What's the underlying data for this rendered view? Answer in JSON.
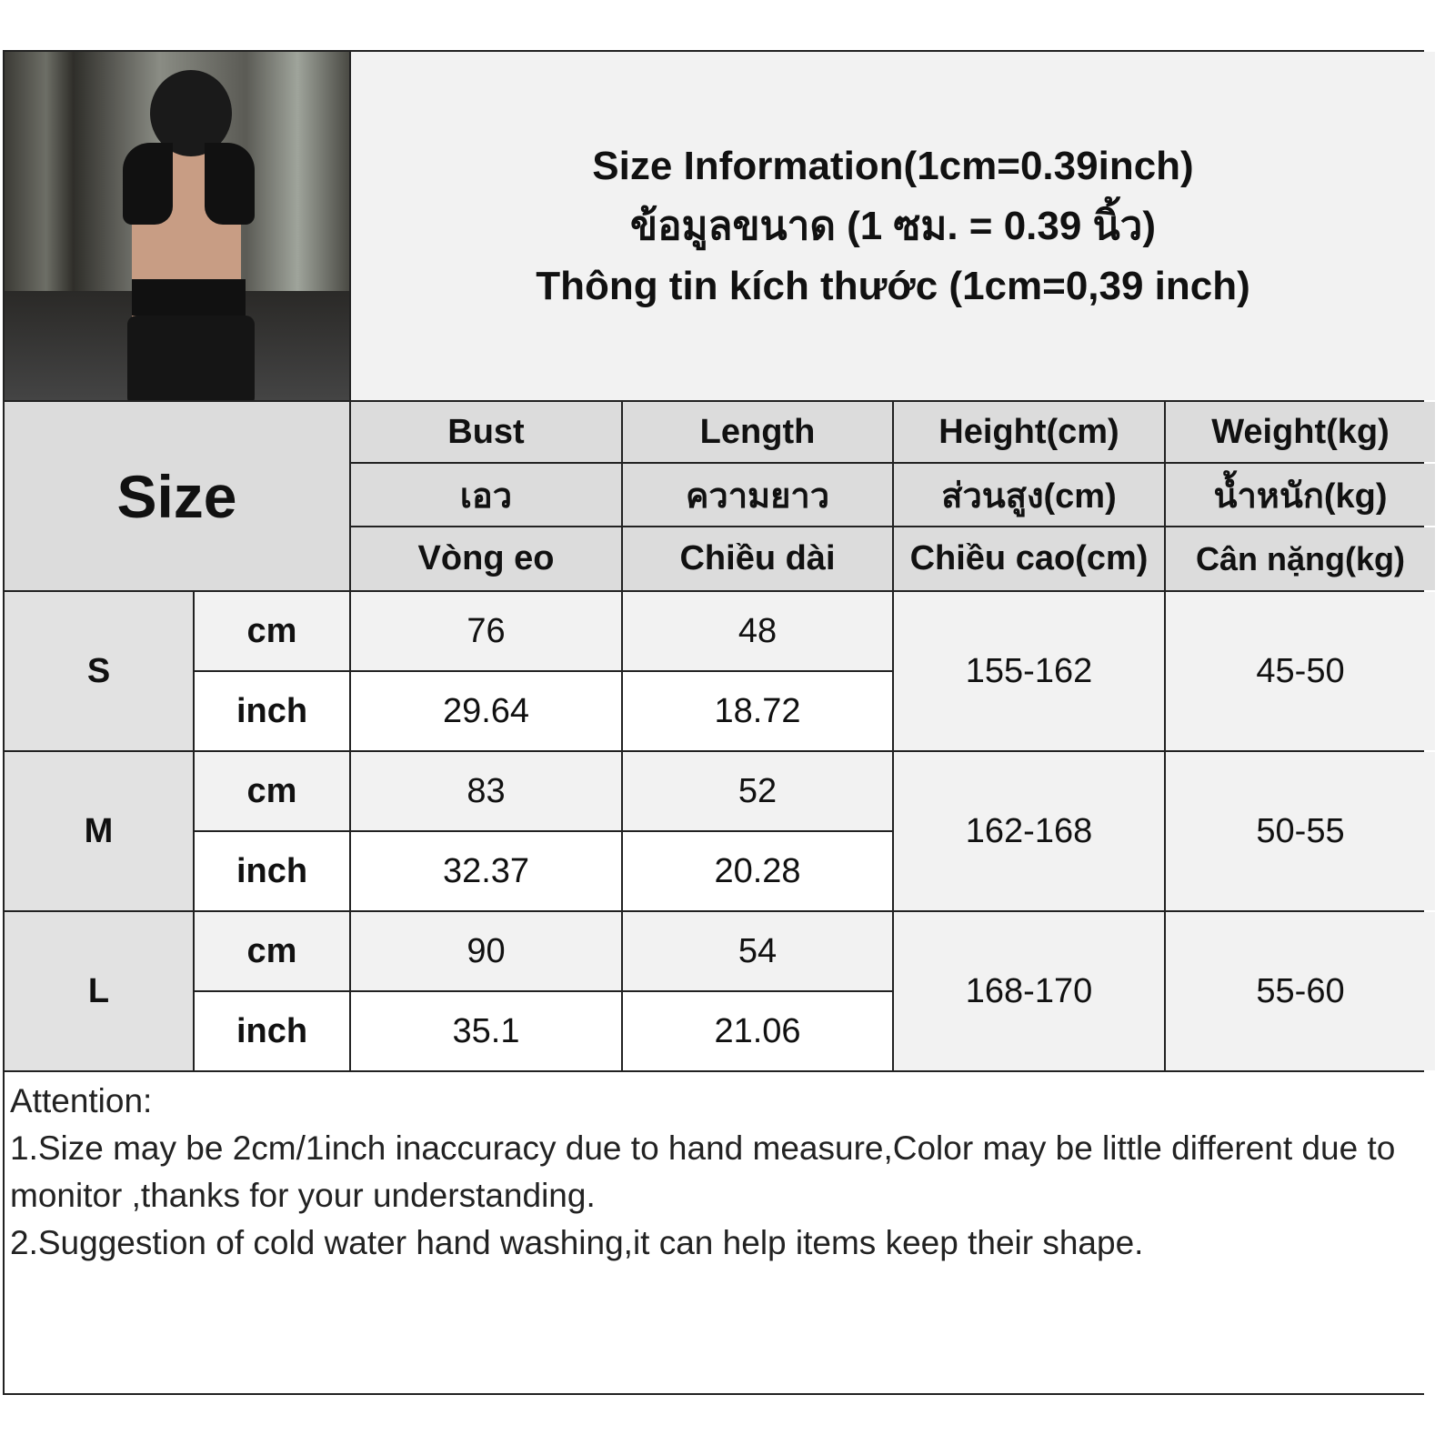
{
  "title_lines": [
    "Size Information(1cm=0.39inch)",
    "ข้อมูลขนาด (1 ซม. = 0.39 นิ้ว)",
    "Thông tin kích thước (1cm=0,39 inch)"
  ],
  "size_label": "Size",
  "columns": [
    {
      "en": "Bust",
      "th": "เอว",
      "vi": "Vòng eo"
    },
    {
      "en": "Length",
      "th": "ความยาว",
      "vi": "Chiều dài"
    },
    {
      "en": "Height(cm)",
      "th": "ส่วนสูง(cm)",
      "vi": "Chiều cao(cm)"
    },
    {
      "en": "Weight(kg)",
      "th": "น้ำหนัก(kg)",
      "vi": "Cân nặng(kg)"
    }
  ],
  "units": {
    "cm": "cm",
    "inch": "inch"
  },
  "rows": [
    {
      "size": "S",
      "bust_cm": "76",
      "length_cm": "48",
      "bust_inch": "29.64",
      "length_inch": "18.72",
      "height": "155-162",
      "weight": "45-50"
    },
    {
      "size": "M",
      "bust_cm": "83",
      "length_cm": "52",
      "bust_inch": "32.37",
      "length_inch": "20.28",
      "height": "162-168",
      "weight": "50-55"
    },
    {
      "size": "L",
      "bust_cm": "90",
      "length_cm": "54",
      "bust_inch": "35.1",
      "length_inch": "21.06",
      "height": "168-170",
      "weight": "55-60"
    }
  ],
  "notes": {
    "heading": "Attention:",
    "items": [
      "1.Size may be 2cm/1inch inaccuracy due to hand measure,Color may be little different due to monitor ,thanks for your understanding.",
      "2.Suggestion of cold water hand washing,it can help items keep their shape."
    ]
  }
}
